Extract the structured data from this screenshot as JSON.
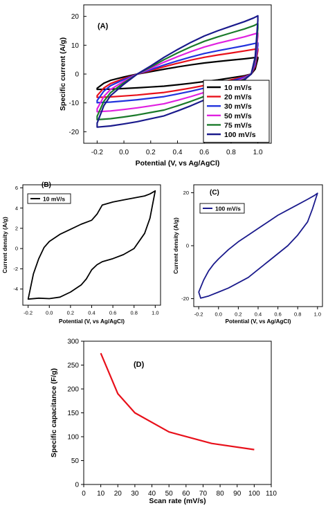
{
  "chart_data": [
    {
      "id": "A",
      "type": "line",
      "panel_label": "(A)",
      "xlabel": "Potential (V, vs Ag/AgCl)",
      "ylabel": "Specific current (A/g)",
      "xlim": [
        -0.3,
        1.1
      ],
      "ylim": [
        -24,
        24
      ],
      "xticks": [
        -0.2,
        0.0,
        0.2,
        0.4,
        0.6,
        0.8,
        1.0
      ],
      "xtick_labels": [
        "-0.2",
        "0.0",
        "0.2",
        "0.4",
        "0.6",
        "0.8",
        "1.0"
      ],
      "yticks": [
        -20,
        -10,
        0,
        10,
        20
      ],
      "ytick_labels": [
        "-20",
        "-10",
        "0",
        "10",
        "20"
      ],
      "legend_position": "bottom-right",
      "series": [
        {
          "name": "10 mV/s",
          "color": "#000000",
          "upper_end": 5.8,
          "lower_start": -5.2,
          "scale": 0.29
        },
        {
          "name": "20 mV/s",
          "color": "#e8101a",
          "upper_end": 8.8,
          "lower_start": -8.0,
          "scale": 0.44
        },
        {
          "name": "30 mV/s",
          "color": "#2233dd",
          "upper_end": 10.8,
          "lower_start": -9.8,
          "scale": 0.54
        },
        {
          "name": "50 mV/s",
          "color": "#e020e0",
          "upper_end": 14.2,
          "lower_start": -12.8,
          "scale": 0.71
        },
        {
          "name": "75 mV/s",
          "color": "#1a7a2a",
          "upper_end": 17.5,
          "lower_start": -15.8,
          "scale": 0.86
        },
        {
          "name": "100 mV/s",
          "color": "#1a1a8c",
          "upper_end": 20.2,
          "lower_start": -18.4,
          "scale": 1.0
        }
      ]
    },
    {
      "id": "B",
      "type": "line",
      "panel_label": "(B)",
      "xlabel": "Potential (V, vs Ag/AgCl)",
      "ylabel": "Current density (A/g)",
      "xlim": [
        -0.25,
        1.05
      ],
      "ylim": [
        -5.6,
        6.3
      ],
      "xticks": [
        -0.2,
        0.0,
        0.2,
        0.4,
        0.6,
        0.8,
        1.0
      ],
      "xtick_labels": [
        "-0.2",
        "0.0",
        "0.2",
        "0.4",
        "0.6",
        "0.8",
        "1.0"
      ],
      "yticks": [
        -4,
        -2,
        0,
        2,
        4,
        6
      ],
      "ytick_labels": [
        "-4",
        "-2",
        "0",
        "2",
        "4",
        "6"
      ],
      "legend_position": "top-left",
      "series": [
        {
          "name": "10 mV/s",
          "color": "#000000",
          "points": [
            [
              -0.2,
              -5.0
            ],
            [
              -0.1,
              -4.9
            ],
            [
              0.0,
              -4.95
            ],
            [
              0.1,
              -4.8
            ],
            [
              0.2,
              -4.3
            ],
            [
              0.3,
              -3.6
            ],
            [
              0.35,
              -3.0
            ],
            [
              0.4,
              -2.1
            ],
            [
              0.45,
              -1.6
            ],
            [
              0.5,
              -1.3
            ],
            [
              0.6,
              -1.0
            ],
            [
              0.7,
              -0.6
            ],
            [
              0.8,
              0.0
            ],
            [
              0.9,
              1.5
            ],
            [
              0.95,
              3.0
            ],
            [
              1.0,
              5.7
            ],
            [
              0.95,
              5.4
            ],
            [
              0.9,
              5.2
            ],
            [
              0.8,
              5.0
            ],
            [
              0.7,
              4.8
            ],
            [
              0.6,
              4.6
            ],
            [
              0.5,
              4.3
            ],
            [
              0.45,
              3.4
            ],
            [
              0.4,
              2.8
            ],
            [
              0.3,
              2.4
            ],
            [
              0.2,
              1.9
            ],
            [
              0.1,
              1.4
            ],
            [
              0.0,
              0.7
            ],
            [
              -0.05,
              0.1
            ],
            [
              -0.1,
              -1.0
            ],
            [
              -0.15,
              -2.5
            ],
            [
              -0.2,
              -5.0
            ]
          ]
        }
      ]
    },
    {
      "id": "C",
      "type": "line",
      "panel_label": "(C)",
      "xlabel": "Potential (V, vs Ag/AgCl)",
      "ylabel": "Current density (A/g)",
      "xlim": [
        -0.25,
        1.05
      ],
      "ylim": [
        -23,
        23
      ],
      "xticks": [
        -0.2,
        0.0,
        0.2,
        0.4,
        0.6,
        0.8,
        1.0
      ],
      "xtick_labels": [
        "-0.2",
        "0.0",
        "0.2",
        "0.4",
        "0.6",
        "0.8",
        "1.0"
      ],
      "yticks": [
        -20,
        0,
        20
      ],
      "ytick_labels": [
        "-20",
        "0",
        "20"
      ],
      "legend_position": "top-left",
      "series": [
        {
          "name": "100 mV/s",
          "color": "#1a1a8c",
          "points": [
            [
              -0.2,
              -17.5
            ],
            [
              -0.18,
              -19.8
            ],
            [
              -0.1,
              -19.0
            ],
            [
              0.0,
              -17.5
            ],
            [
              0.1,
              -16.0
            ],
            [
              0.2,
              -14.0
            ],
            [
              0.3,
              -12.0
            ],
            [
              0.4,
              -9.0
            ],
            [
              0.5,
              -6.0
            ],
            [
              0.6,
              -3.0
            ],
            [
              0.7,
              0.0
            ],
            [
              0.8,
              4.0
            ],
            [
              0.9,
              9.0
            ],
            [
              0.95,
              14.0
            ],
            [
              1.0,
              19.8
            ],
            [
              0.97,
              19.0
            ],
            [
              0.9,
              17.5
            ],
            [
              0.8,
              15.5
            ],
            [
              0.7,
              13.5
            ],
            [
              0.6,
              11.5
            ],
            [
              0.5,
              9.0
            ],
            [
              0.4,
              6.5
            ],
            [
              0.3,
              4.0
            ],
            [
              0.2,
              1.5
            ],
            [
              0.1,
              -1.5
            ],
            [
              0.0,
              -5.0
            ],
            [
              -0.05,
              -7.0
            ],
            [
              -0.1,
              -9.5
            ],
            [
              -0.15,
              -13.0
            ],
            [
              -0.2,
              -17.5
            ]
          ]
        }
      ]
    },
    {
      "id": "D",
      "type": "line",
      "panel_label": "(D)",
      "xlabel": "Scan rate (mV/s)",
      "ylabel": "Specific capacitance (F/g)",
      "xlim": [
        0,
        110
      ],
      "ylim": [
        0,
        300
      ],
      "xticks": [
        0,
        10,
        20,
        30,
        40,
        50,
        60,
        70,
        80,
        90,
        100,
        110
      ],
      "xtick_labels": [
        "0",
        "10",
        "20",
        "30",
        "40",
        "50",
        "60",
        "70",
        "80",
        "90",
        "100",
        "110"
      ],
      "yticks": [
        0,
        50,
        100,
        150,
        200,
        250,
        300
      ],
      "ytick_labels": [
        "0",
        "50",
        "100",
        "150",
        "200",
        "250",
        "300"
      ],
      "series": [
        {
          "name": "",
          "color": "#e8101a",
          "x": [
            10,
            20,
            30,
            50,
            75,
            100
          ],
          "y": [
            275,
            190,
            150,
            110,
            86,
            73
          ]
        }
      ]
    }
  ]
}
